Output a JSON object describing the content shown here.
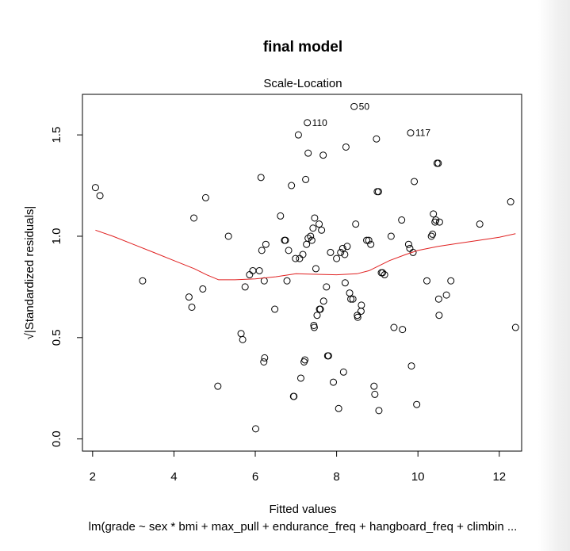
{
  "chart_data": {
    "type": "scatter",
    "title": "final model",
    "subtitle": "Scale-Location",
    "xlabel": "Fitted values",
    "ylabel": "√|Standardized residuals|",
    "caption": "lm(grade ~ sex * bmi + max_pull + endurance_freq + hangboard_freq + climbin ...",
    "xlim": [
      1.75,
      12.55
    ],
    "ylim": [
      -0.06,
      1.7
    ],
    "xticks": [
      2,
      4,
      6,
      8,
      10,
      12
    ],
    "xtick_labels": [
      "2",
      "4",
      "6",
      "8",
      "10",
      "12"
    ],
    "yticks": [
      0.0,
      0.5,
      1.0,
      1.5
    ],
    "ytick_labels": [
      "0.0",
      "0.5",
      "1.0",
      "1.5"
    ],
    "grid": false,
    "points": [
      [
        2.07,
        1.24
      ],
      [
        2.18,
        1.2
      ],
      [
        3.23,
        0.78
      ],
      [
        4.37,
        0.7
      ],
      [
        4.44,
        0.65
      ],
      [
        4.49,
        1.09
      ],
      [
        4.71,
        0.74
      ],
      [
        4.78,
        1.19
      ],
      [
        5.08,
        0.26
      ],
      [
        5.34,
        1.0
      ],
      [
        5.65,
        0.52
      ],
      [
        5.69,
        0.49
      ],
      [
        5.75,
        0.75
      ],
      [
        5.86,
        0.81
      ],
      [
        5.94,
        0.83
      ],
      [
        6.01,
        0.05
      ],
      [
        6.1,
        0.83
      ],
      [
        6.14,
        1.29
      ],
      [
        6.16,
        0.93
      ],
      [
        6.21,
        0.38
      ],
      [
        6.22,
        0.78
      ],
      [
        6.23,
        0.4
      ],
      [
        6.26,
        0.96
      ],
      [
        6.48,
        0.64
      ],
      [
        6.62,
        1.1
      ],
      [
        6.72,
        0.98
      ],
      [
        6.74,
        0.98
      ],
      [
        6.78,
        0.78
      ],
      [
        6.82,
        0.93
      ],
      [
        6.89,
        1.25
      ],
      [
        6.94,
        0.21
      ],
      [
        6.95,
        0.21
      ],
      [
        6.99,
        0.89
      ],
      [
        7.06,
        1.5
      ],
      [
        7.09,
        0.89
      ],
      [
        7.12,
        0.3
      ],
      [
        7.17,
        0.91
      ],
      [
        7.2,
        0.38
      ],
      [
        7.22,
        0.39
      ],
      [
        7.24,
        1.28
      ],
      [
        7.26,
        0.96
      ],
      [
        7.28,
        1.56
      ],
      [
        7.3,
        1.41
      ],
      [
        7.3,
        0.99
      ],
      [
        7.36,
        1.0
      ],
      [
        7.39,
        0.98
      ],
      [
        7.42,
        1.04
      ],
      [
        7.44,
        0.56
      ],
      [
        7.45,
        0.55
      ],
      [
        7.46,
        1.09
      ],
      [
        7.49,
        0.84
      ],
      [
        7.52,
        0.61
      ],
      [
        7.57,
        1.06
      ],
      [
        7.58,
        0.64
      ],
      [
        7.6,
        0.64
      ],
      [
        7.63,
        1.03
      ],
      [
        7.67,
        1.4
      ],
      [
        7.68,
        0.68
      ],
      [
        7.75,
        0.75
      ],
      [
        7.78,
        0.41
      ],
      [
        7.8,
        0.41
      ],
      [
        7.85,
        0.92
      ],
      [
        7.92,
        0.28
      ],
      [
        8.0,
        0.89
      ],
      [
        8.05,
        0.15
      ],
      [
        8.1,
        0.92
      ],
      [
        8.15,
        0.94
      ],
      [
        8.17,
        0.33
      ],
      [
        8.2,
        0.91
      ],
      [
        8.21,
        0.77
      ],
      [
        8.23,
        1.44
      ],
      [
        8.26,
        0.95
      ],
      [
        8.32,
        0.72
      ],
      [
        8.35,
        0.69
      ],
      [
        8.4,
        0.69
      ],
      [
        8.43,
        1.64
      ],
      [
        8.47,
        1.06
      ],
      [
        8.51,
        0.61
      ],
      [
        8.52,
        0.6
      ],
      [
        8.6,
        0.63
      ],
      [
        8.61,
        0.66
      ],
      [
        8.74,
        0.98
      ],
      [
        8.79,
        0.98
      ],
      [
        8.84,
        0.96
      ],
      [
        8.92,
        0.26
      ],
      [
        8.94,
        0.22
      ],
      [
        8.98,
        1.48
      ],
      [
        9.0,
        1.22
      ],
      [
        9.03,
        1.22
      ],
      [
        9.04,
        0.14
      ],
      [
        9.1,
        0.82
      ],
      [
        9.13,
        0.82
      ],
      [
        9.18,
        0.81
      ],
      [
        9.34,
        1.0
      ],
      [
        9.41,
        0.55
      ],
      [
        9.6,
        1.08
      ],
      [
        9.62,
        0.54
      ],
      [
        9.77,
        0.96
      ],
      [
        9.8,
        0.94
      ],
      [
        9.82,
        1.51
      ],
      [
        9.84,
        0.36
      ],
      [
        9.88,
        0.92
      ],
      [
        9.91,
        1.27
      ],
      [
        9.97,
        0.17
      ],
      [
        10.22,
        0.78
      ],
      [
        10.33,
        1.0
      ],
      [
        10.36,
        1.01
      ],
      [
        10.38,
        1.11
      ],
      [
        10.42,
        1.07
      ],
      [
        10.44,
        1.08
      ],
      [
        10.47,
        1.36
      ],
      [
        10.5,
        1.36
      ],
      [
        10.51,
        0.69
      ],
      [
        10.52,
        0.61
      ],
      [
        10.53,
        1.07
      ],
      [
        10.7,
        0.71
      ],
      [
        10.81,
        0.78
      ],
      [
        11.52,
        1.06
      ],
      [
        12.28,
        1.17
      ],
      [
        12.4,
        0.55
      ]
    ],
    "smoother": [
      [
        2.07,
        1.03
      ],
      [
        2.5,
        1.0
      ],
      [
        3.0,
        0.96
      ],
      [
        3.5,
        0.92
      ],
      [
        4.0,
        0.88
      ],
      [
        4.5,
        0.84
      ],
      [
        4.8,
        0.81
      ],
      [
        5.1,
        0.785
      ],
      [
        5.5,
        0.785
      ],
      [
        6.0,
        0.79
      ],
      [
        6.5,
        0.8
      ],
      [
        7.0,
        0.815
      ],
      [
        7.5,
        0.812
      ],
      [
        8.0,
        0.81
      ],
      [
        8.5,
        0.815
      ],
      [
        8.8,
        0.83
      ],
      [
        9.0,
        0.85
      ],
      [
        9.3,
        0.88
      ],
      [
        9.7,
        0.91
      ],
      [
        10.0,
        0.93
      ],
      [
        10.5,
        0.95
      ],
      [
        11.0,
        0.965
      ],
      [
        11.5,
        0.98
      ],
      [
        12.0,
        0.995
      ],
      [
        12.4,
        1.013
      ]
    ],
    "point_labels": [
      {
        "text": "50",
        "x": 8.43,
        "y": 1.64
      },
      {
        "text": "110",
        "x": 7.28,
        "y": 1.56
      },
      {
        "text": "117",
        "x": 9.82,
        "y": 1.51
      }
    ],
    "point_color": "#000000",
    "smoother_color": "#e02020"
  }
}
